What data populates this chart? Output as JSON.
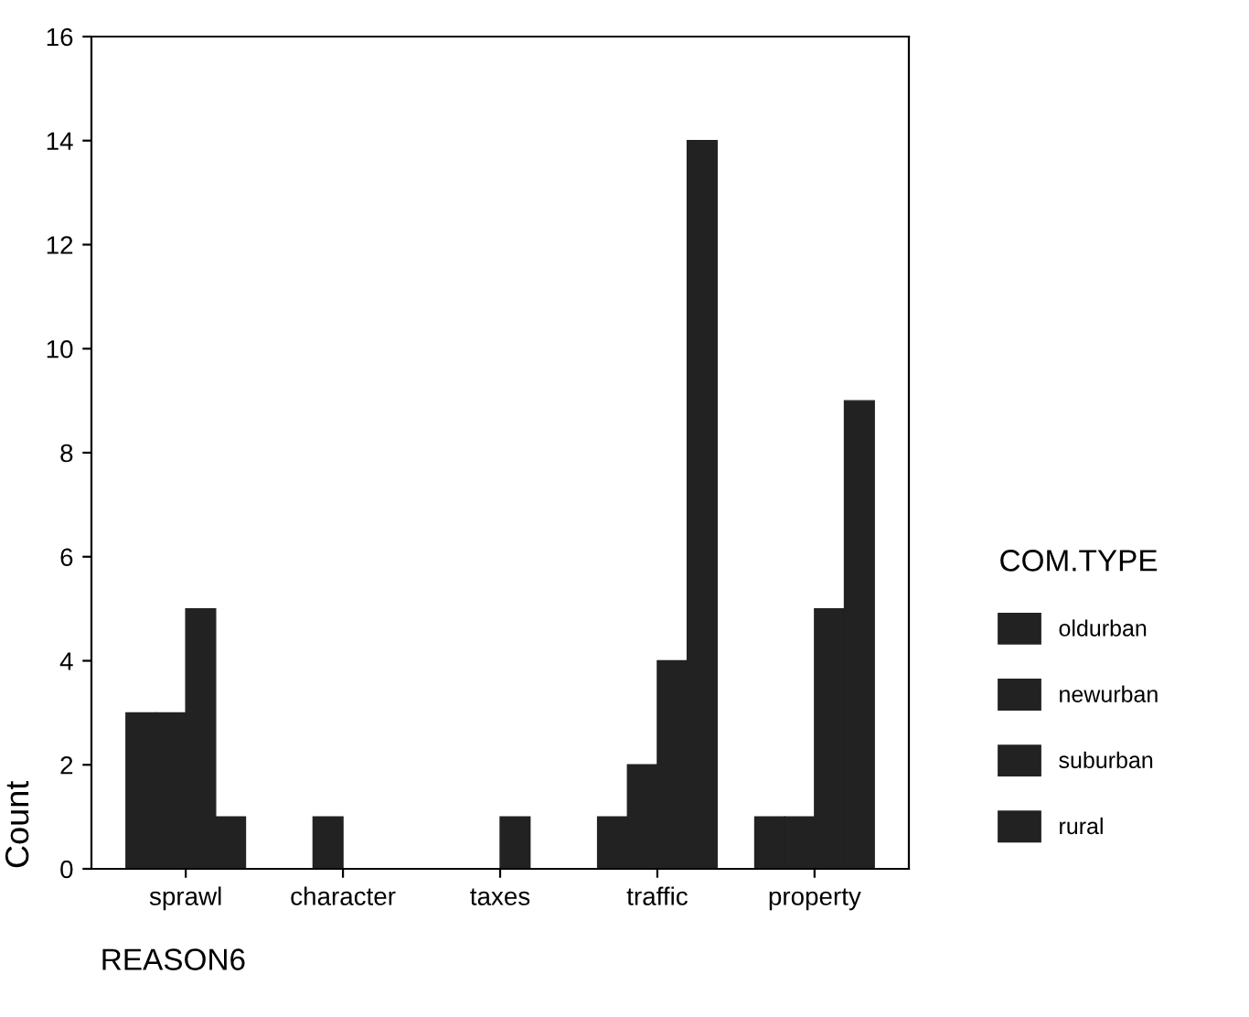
{
  "chart_data": {
    "type": "bar",
    "xlabel": "REASON6",
    "ylabel": "Count",
    "legend_title": "COM.TYPE",
    "categories": [
      "sprawl",
      "character",
      "taxes",
      "traffic",
      "property"
    ],
    "series": [
      {
        "name": "oldurban",
        "color": "#222222",
        "values": [
          3,
          0,
          0,
          1,
          1
        ]
      },
      {
        "name": "newurban",
        "color": "#222222",
        "values": [
          3,
          1,
          0,
          2,
          1
        ]
      },
      {
        "name": "suburban",
        "color": "#222222",
        "values": [
          5,
          0,
          1,
          4,
          5
        ]
      },
      {
        "name": "rural",
        "color": "#222222",
        "values": [
          1,
          0,
          0,
          14,
          9
        ]
      }
    ],
    "ylim": [
      0,
      16
    ],
    "yticks": [
      0,
      2,
      4,
      6,
      8,
      10,
      12,
      14,
      16
    ],
    "grid": false,
    "legend": "right"
  }
}
